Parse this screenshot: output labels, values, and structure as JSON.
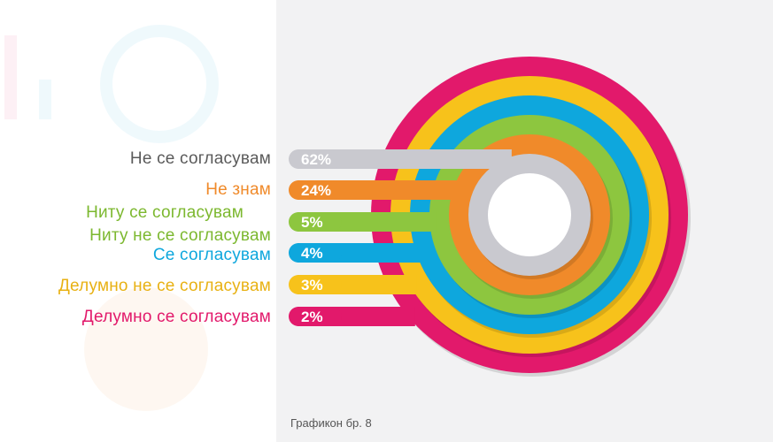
{
  "chart_data": {
    "type": "bar",
    "categories": [
      "Не се согласувам",
      "Не знам",
      "Ниту се согласувам\nНиту не се согласувам",
      "Се согласувам",
      "Делумно не се согласувам",
      "Делумно се согласувам"
    ],
    "values": [
      62,
      24,
      5,
      4,
      3,
      2
    ],
    "value_labels": [
      "62%",
      "24%",
      "5%",
      "4%",
      "3%",
      "2%"
    ],
    "colors": [
      "#c9c9cf",
      "#f08a2a",
      "#8dc63f",
      "#0ea7dd",
      "#f7c21b",
      "#e2196b"
    ],
    "label_colors": [
      "#5a5a5a",
      "#f08a2a",
      "#7cb82f",
      "#0ea7dd",
      "#e8b113",
      "#e2196b"
    ],
    "caption": "Графикон бр. 8"
  }
}
